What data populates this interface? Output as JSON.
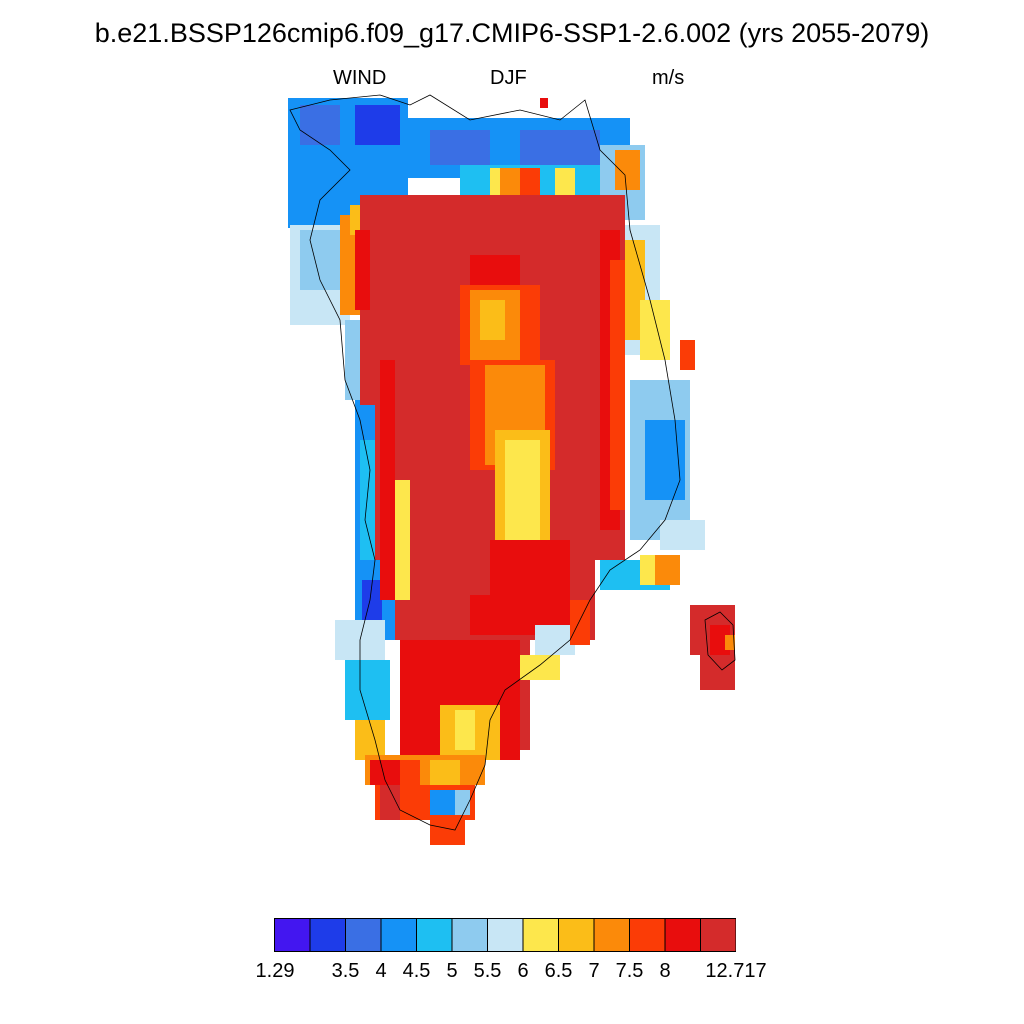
{
  "title": "b.e21.BSSP126cmip6.f09_g17.CMIP6-SSP1-2.6.002 (yrs 2055-2079)",
  "subtitle": {
    "left": "WIND",
    "center": "DJF",
    "right": "m/s"
  },
  "legend": {
    "colors": [
      "#4316f0",
      "#1e3ce9",
      "#3a6fe4",
      "#1592f6",
      "#1ebff2",
      "#8ecbef",
      "#c8e6f5",
      "#fde74c",
      "#fbbd18",
      "#fb8a0a",
      "#fb3c06",
      "#e80d0d",
      "#d42b2b"
    ],
    "tick_labels": [
      "1.29",
      "3.5",
      "4",
      "4.5",
      "5",
      "5.5",
      "6",
      "6.5",
      "7",
      "7.5",
      "8",
      "12.717"
    ]
  },
  "map": {
    "variable": "WIND",
    "season": "DJF",
    "units": "m/s",
    "region": "Greenland"
  }
}
